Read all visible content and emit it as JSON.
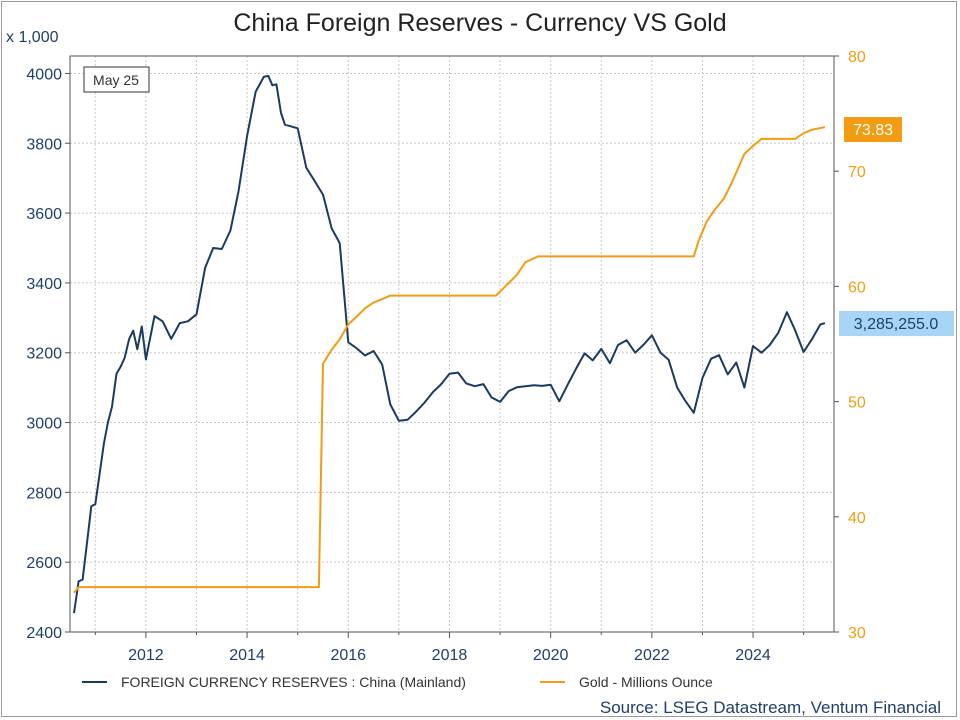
{
  "chart_data": {
    "type": "line",
    "title": "China Foreign Reserves - Currency VS Gold",
    "date_badge": "May 25",
    "left_axis": {
      "unit_label": "x 1,000",
      "ylim": [
        2400,
        4050
      ],
      "ticks": [
        "2400",
        "2600",
        "2800",
        "3000",
        "3200",
        "3400",
        "3600",
        "3800",
        "4000"
      ],
      "color": "#1f3f6b"
    },
    "right_axis": {
      "ylim": [
        30,
        80
      ],
      "ticks": [
        "30",
        "40",
        "50",
        "60",
        "70",
        "80"
      ],
      "color": "#f39c12"
    },
    "x_axis": {
      "range": [
        2010.5,
        2025.6
      ],
      "ticks": [
        "2012",
        "2014",
        "2016",
        "2018",
        "2020",
        "2022",
        "2024"
      ],
      "grid": true
    },
    "series": [
      {
        "name": "FOREIGN CURRENCY RESERVES : China (Mainland)",
        "axis": "left",
        "color": "#1b3a60",
        "last_value_label": "3,285,255.0",
        "x": [
          2010.58,
          2010.67,
          2010.75,
          2010.83,
          2010.92,
          2011.0,
          2011.08,
          2011.17,
          2011.25,
          2011.33,
          2011.42,
          2011.5,
          2011.58,
          2011.67,
          2011.75,
          2011.83,
          2011.92,
          2012.0,
          2012.17,
          2012.33,
          2012.5,
          2012.67,
          2012.83,
          2013.0,
          2013.17,
          2013.33,
          2013.5,
          2013.67,
          2013.83,
          2014.0,
          2014.17,
          2014.33,
          2014.42,
          2014.5,
          2014.58,
          2014.67,
          2014.75,
          2014.83,
          2015.0,
          2015.17,
          2015.33,
          2015.5,
          2015.67,
          2015.83,
          2016.0,
          2016.17,
          2016.33,
          2016.5,
          2016.67,
          2016.83,
          2017.0,
          2017.17,
          2017.33,
          2017.5,
          2017.67,
          2017.83,
          2018.0,
          2018.17,
          2018.33,
          2018.5,
          2018.67,
          2018.83,
          2019.0,
          2019.17,
          2019.33,
          2019.5,
          2019.67,
          2019.83,
          2020.0,
          2020.17,
          2020.33,
          2020.5,
          2020.67,
          2020.83,
          2021.0,
          2021.17,
          2021.33,
          2021.5,
          2021.67,
          2021.83,
          2022.0,
          2022.17,
          2022.33,
          2022.5,
          2022.67,
          2022.83,
          2023.0,
          2023.17,
          2023.33,
          2023.5,
          2023.67,
          2023.83,
          2024.0,
          2024.17,
          2024.33,
          2024.5,
          2024.67,
          2024.83,
          2025.0,
          2025.17,
          2025.33,
          2025.42
        ],
        "values": [
          2454,
          2545,
          2550,
          2648,
          2760,
          2766,
          2847,
          2940,
          3000,
          3045,
          3140,
          3160,
          3185,
          3240,
          3263,
          3210,
          3275,
          3181,
          3305,
          3290,
          3240,
          3285,
          3290,
          3310,
          3443,
          3500,
          3497,
          3550,
          3662,
          3821,
          3948,
          3990,
          3993,
          3966,
          3969,
          3887,
          3853,
          3850,
          3843,
          3730,
          3693,
          3653,
          3557,
          3514,
          3230,
          3212,
          3192,
          3205,
          3166,
          3052,
          3005,
          3008,
          3030,
          3056,
          3087,
          3109,
          3140,
          3143,
          3112,
          3104,
          3110,
          3072,
          3059,
          3090,
          3101,
          3104,
          3107,
          3105,
          3108,
          3061,
          3107,
          3154,
          3198,
          3178,
          3211,
          3170,
          3222,
          3236,
          3200,
          3222,
          3250,
          3200,
          3180,
          3100,
          3060,
          3028,
          3128,
          3183,
          3193,
          3138,
          3172,
          3100,
          3219,
          3200,
          3222,
          3257,
          3316,
          3265,
          3202,
          3240,
          3281,
          3285
        ]
      },
      {
        "name": "Gold - Millions Ounce",
        "axis": "right",
        "color": "#f39c12",
        "last_value_label": "73.83",
        "x": [
          2010.58,
          2010.67,
          2011.0,
          2015.42,
          2015.5,
          2015.67,
          2015.83,
          2016.0,
          2016.17,
          2016.33,
          2016.5,
          2016.67,
          2016.83,
          2017.0,
          2018.92,
          2019.08,
          2019.33,
          2019.5,
          2019.75,
          2019.83,
          2022.83,
          2022.92,
          2023.08,
          2023.25,
          2023.42,
          2023.58,
          2023.75,
          2023.83,
          2024.0,
          2024.17,
          2024.33,
          2024.42,
          2024.83,
          2025.0,
          2025.17,
          2025.42
        ],
        "values": [
          33.4,
          33.9,
          33.9,
          33.9,
          53.3,
          54.5,
          55.4,
          56.7,
          57.4,
          58.1,
          58.6,
          58.9,
          59.2,
          59.2,
          59.2,
          59.9,
          61.0,
          62.1,
          62.6,
          62.6,
          62.6,
          63.9,
          65.6,
          66.7,
          67.6,
          69.0,
          70.7,
          71.5,
          72.2,
          72.8,
          72.8,
          72.8,
          72.8,
          73.3,
          73.6,
          73.83
        ]
      }
    ],
    "legend_position": "bottom",
    "source": "Source: LSEG Datastream, Ventum Financial"
  }
}
